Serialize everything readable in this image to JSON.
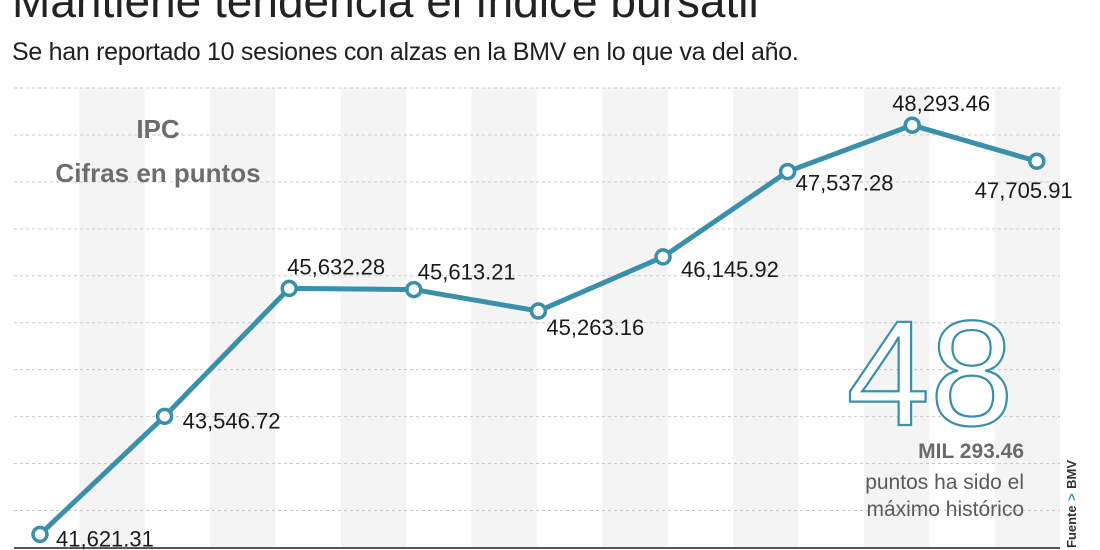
{
  "header": {
    "title": "Mantiene tendencia el índice bursátil",
    "subtitle": "Se han reportado 10 sesiones con alzas en la BMV en lo que va del año."
  },
  "chart_data": {
    "type": "line",
    "note_line1": "IPC",
    "note_line2": "Cifras en puntos",
    "x": [
      1,
      2,
      3,
      4,
      5,
      6,
      7,
      8,
      9
    ],
    "values": [
      41621.31,
      43546.72,
      45632.28,
      45613.21,
      45263.16,
      46145.92,
      47537.28,
      48293.46,
      47705.91
    ],
    "data_labels": [
      "41,621.31",
      "43,546.72",
      "45,632.28",
      "45,613.21",
      "45,263.16",
      "46,145.92",
      "47,537.28",
      "48,293.46",
      "47,705.91"
    ],
    "ylim": [
      41400,
      48900
    ],
    "grid": true,
    "line_color": "#3a8fab",
    "grid_color": "#c9c9c9",
    "band_color": "#f4f4f4"
  },
  "callout": {
    "big_number": "48",
    "bold_text": "MIL 293.46",
    "line1": "puntos ha sido el",
    "line2": "máximo histórico"
  },
  "source": {
    "label": "Fuente",
    "arrow": ">",
    "name": "BMV"
  }
}
